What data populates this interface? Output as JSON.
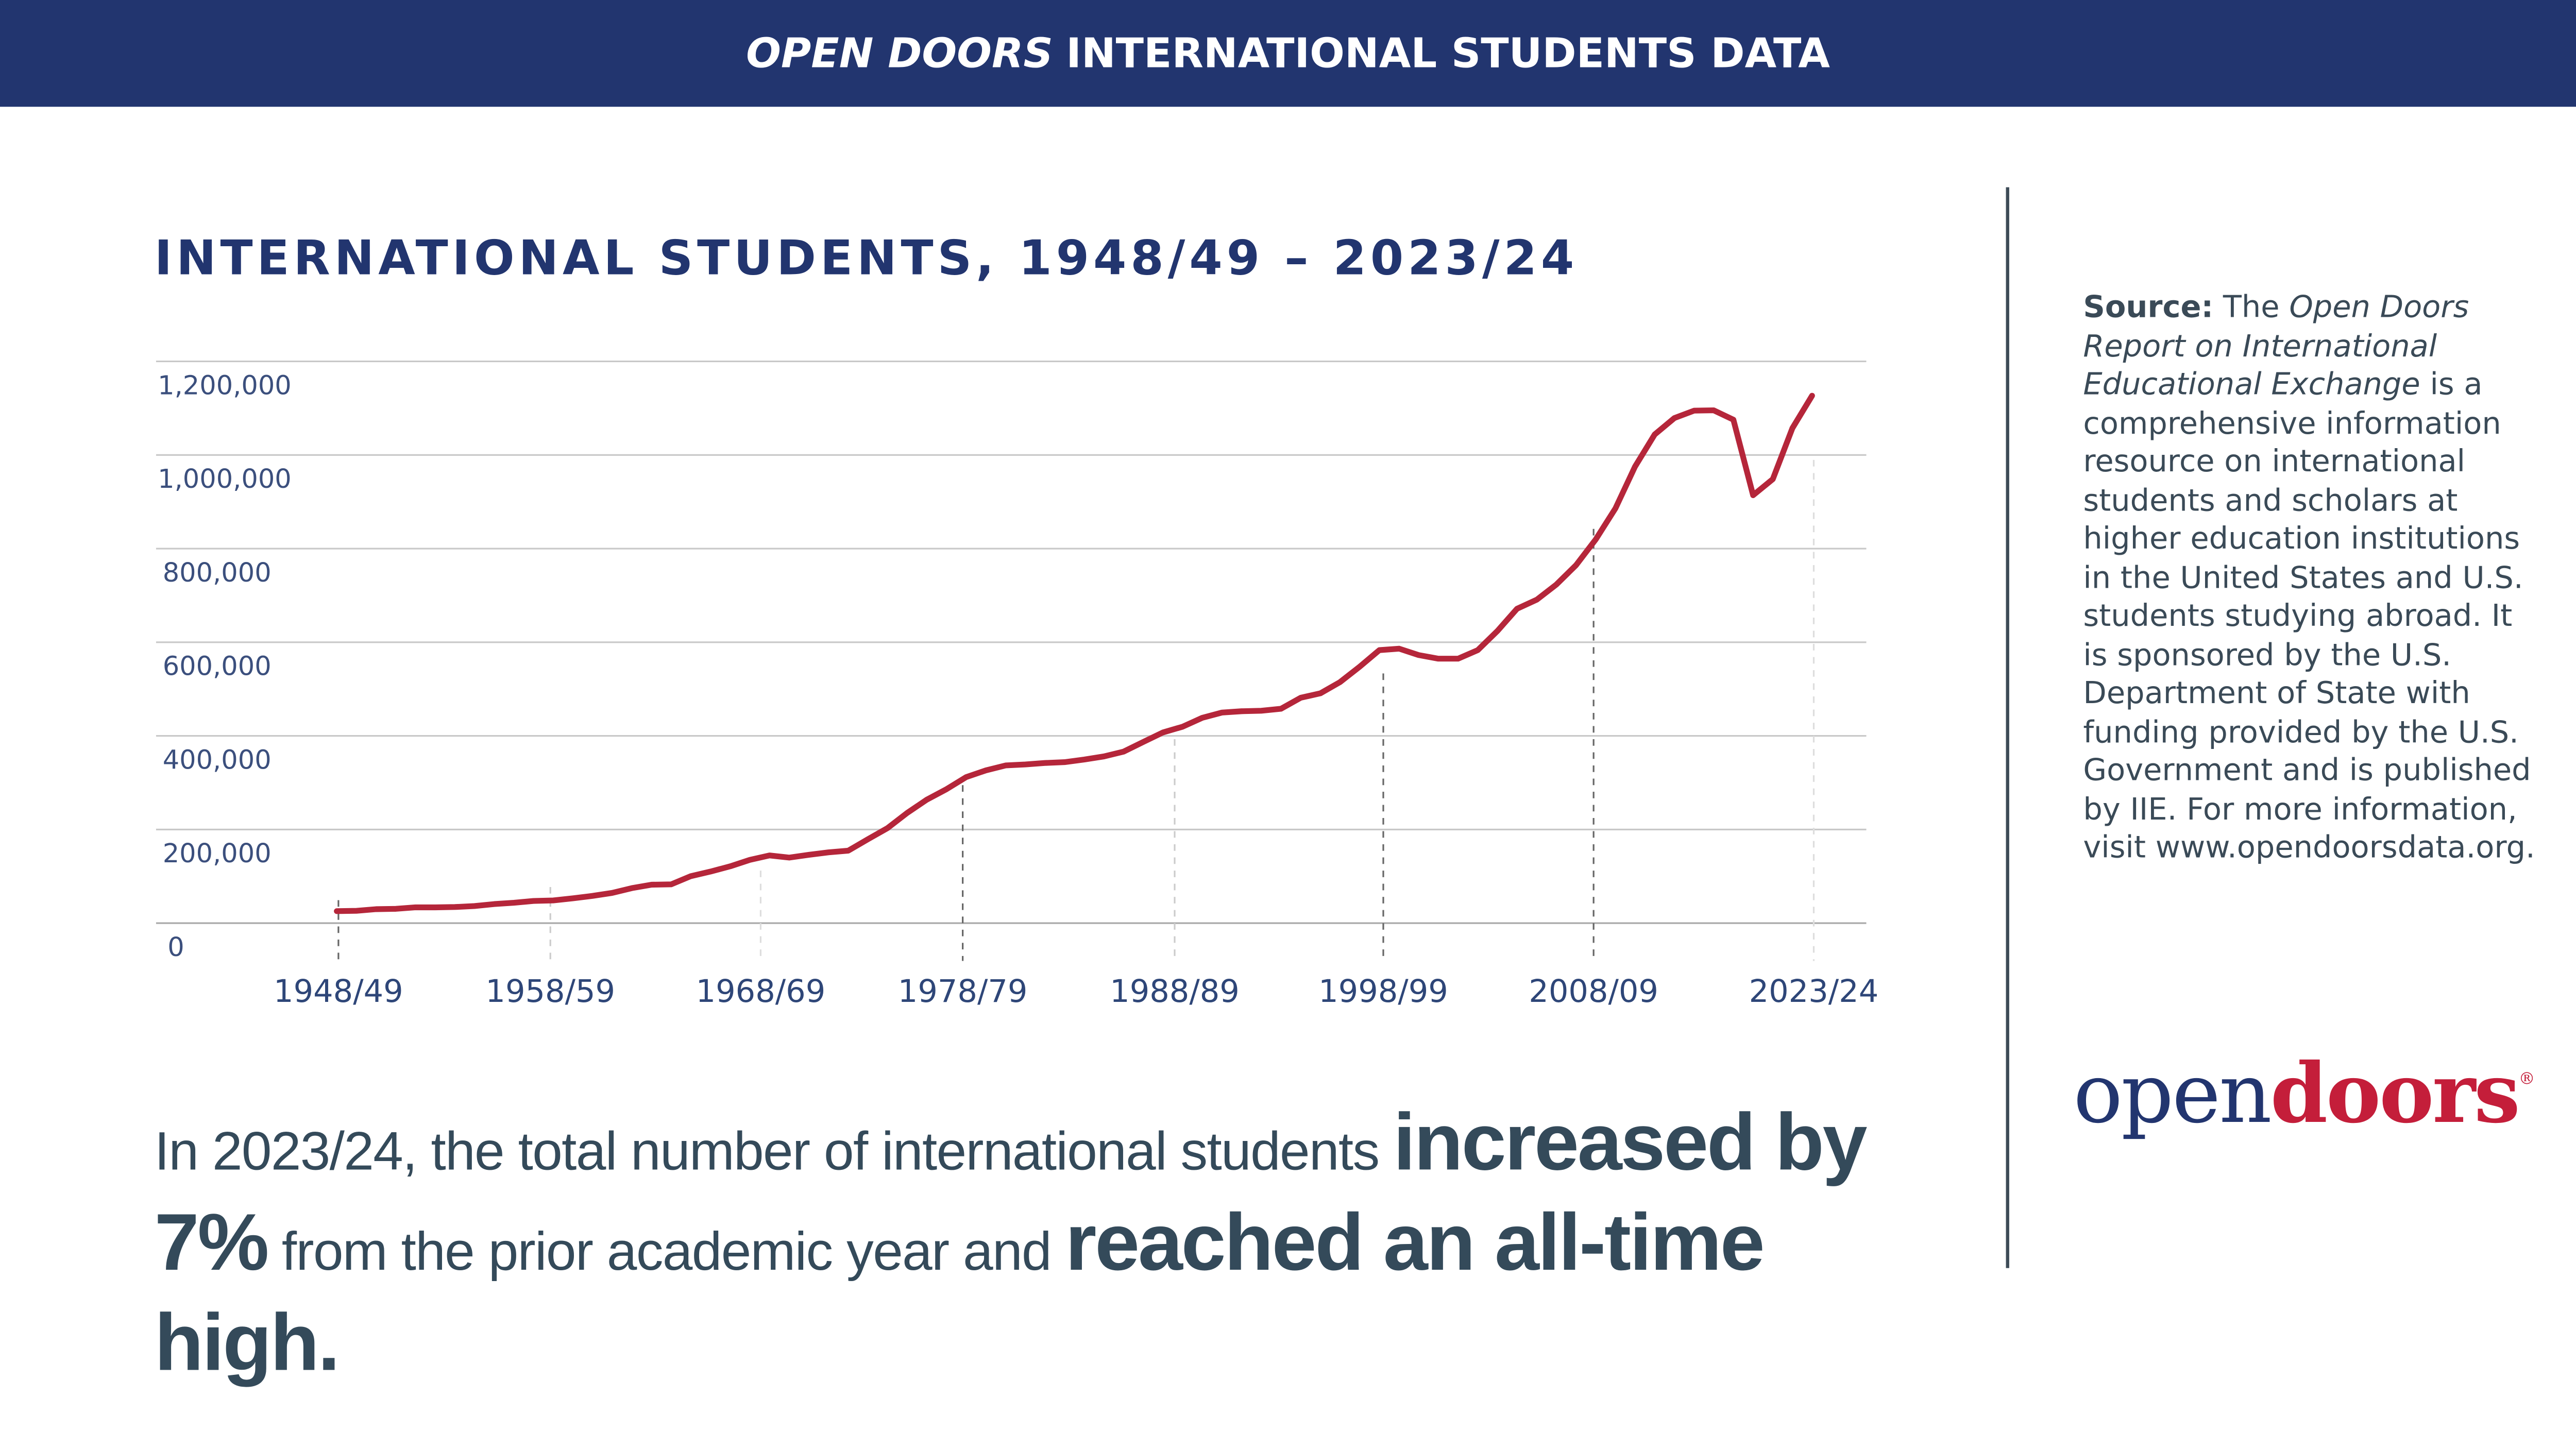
{
  "header": {
    "title_italic": "OPEN DOORS",
    "title_rest": "INTERNATIONAL STUDENTS DATA"
  },
  "colors": {
    "navy": "#22356f",
    "line": "#b5263a",
    "logo_red": "#c41e3a"
  },
  "chart_data": {
    "type": "line",
    "title": "INTERNATIONAL STUDENTS, 1948/49 – 2023/24",
    "xlabel": "",
    "ylabel": "",
    "ylim": [
      0,
      1200000
    ],
    "yticks": [
      "0",
      "200,000",
      "400,000",
      "600,000",
      "800,000",
      "1,000,000",
      "1,200,000"
    ],
    "ytick_values": [
      0,
      200000,
      400000,
      600000,
      800000,
      1000000,
      1200000
    ],
    "xticks": [
      "1948/49",
      "1958/59",
      "1968/69",
      "1978/79",
      "1988/89",
      "1998/99",
      "2008/09",
      "2023/24"
    ],
    "grid": true,
    "series": [
      {
        "name": "International students",
        "x": [
          1948,
          1949,
          1950,
          1951,
          1952,
          1953,
          1954,
          1955,
          1956,
          1957,
          1958,
          1959,
          1960,
          1961,
          1962,
          1963,
          1964,
          1965,
          1966,
          1967,
          1968,
          1969,
          1970,
          1971,
          1972,
          1973,
          1974,
          1975,
          1976,
          1977,
          1978,
          1979,
          1980,
          1981,
          1982,
          1983,
          1984,
          1985,
          1986,
          1987,
          1988,
          1989,
          1990,
          1991,
          1992,
          1993,
          1994,
          1995,
          1996,
          1997,
          1998,
          1999,
          2000,
          2001,
          2002,
          2003,
          2004,
          2005,
          2006,
          2007,
          2008,
          2009,
          2010,
          2011,
          2012,
          2013,
          2014,
          2015,
          2016,
          2017,
          2018,
          2019,
          2020,
          2021,
          2022,
          2023
        ],
        "values": [
          25464,
          26433,
          29813,
          30462,
          33675,
          33833,
          34232,
          36494,
          40666,
          43391,
          47245,
          48486,
          53107,
          58086,
          64705,
          74814,
          82045,
          82709,
          100262,
          110315,
          121362,
          134959,
          144708,
          140126,
          146097,
          151066,
          154580,
          179344,
          203068,
          235509,
          263938,
          286343,
          311882,
          326299,
          336985,
          338894,
          342113,
          343777,
          349609,
          356187,
          366354,
          386851,
          407529,
          419585,
          438618,
          449749,
          452635,
          453787,
          457984,
          481280,
          490933,
          514723,
          547867,
          582996,
          586323,
          572509,
          565039,
          564766,
          582984,
          623805,
          671616,
          690923,
          723277,
          764495,
          819644,
          886052,
          974926,
          1043839,
          1078822,
          1094792,
          1095299,
          1075496,
          914095,
          948519,
          1057188,
          1126690
        ]
      }
    ]
  },
  "summary": {
    "part1": "In 2023/24, the total number of international students ",
    "bold1": "increased by 7%",
    "part2": " from the prior academic year and ",
    "bold2": "reached an all-time high."
  },
  "source": {
    "label": "Source:",
    "t1": " The ",
    "report_title": "Open Doors Report on International Educational Exchange",
    "t2": " is a comprehensive information resource on international students and scholars at higher education institutions in the United States and U.S. students studying abroad. It is sponsored by the U.S. Department of State with funding provided by the U.S. Government and is published by IIE. For more information, visit www.opendoorsdata.org."
  },
  "logo": {
    "part1": "open",
    "part2": "doors",
    "mark": "®"
  }
}
